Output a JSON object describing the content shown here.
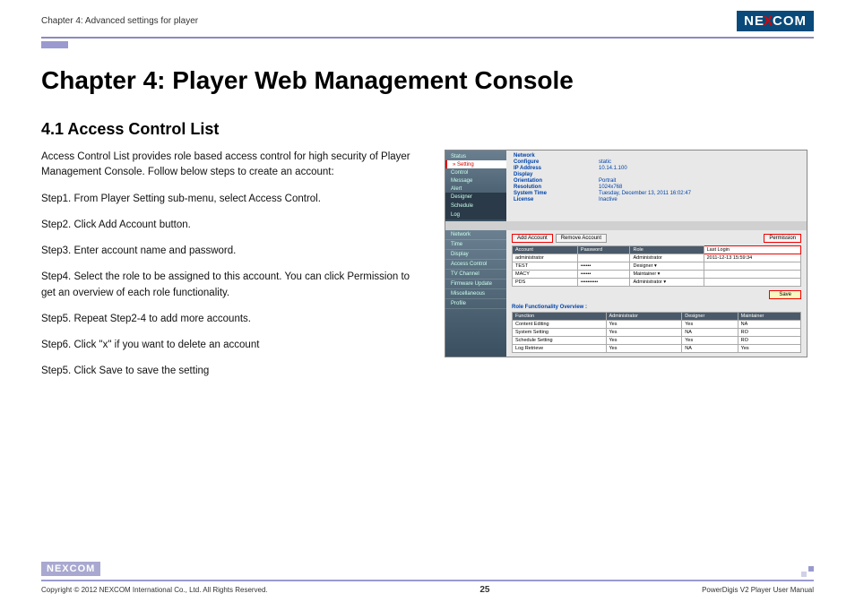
{
  "header": {
    "chapter": "Chapter 4: Advanced settings for player",
    "logo_pre": "NE",
    "logo_x": "X",
    "logo_post": "COM"
  },
  "title": "Chapter 4: Player Web Management Console",
  "section": "4.1 Access Control List",
  "intro": "Access Control List provides role based access control for high security of Player Management Console. Follow below steps to create an account:",
  "steps": {
    "s1": "Step1. From Player Setting sub-menu, select Access Control.",
    "s2": "Step2. Click Add Account button.",
    "s3": "Step3. Enter account name and password.",
    "s4": "Step4. Select the role to be assigned to this account. You can click Permission to get an overview of each role functionality.",
    "s5": "Step5. Repeat Step2-4 to add more accounts.",
    "s6": "Step6. Click \"x\" if you want to delete an account",
    "s7": "Step5. Click Save to save the setting"
  },
  "screenshot": {
    "side": {
      "status": "Status",
      "setting": "» Setting",
      "control": "Control",
      "message": "Message",
      "alert": "Alert",
      "designer": "Designer",
      "schedule": "Schedule",
      "log": "Log"
    },
    "info": {
      "network": {
        "h": "Network",
        "configure_l": "Configure",
        "configure_v": "static",
        "ip_l": "IP Address",
        "ip_v": "10.14.1.100"
      },
      "display": {
        "h": "Display",
        "orient_l": "Orientation",
        "orient_v": "Portrait",
        "res_l": "Resolution",
        "res_v": "1024x768"
      },
      "systime": {
        "h": "System Time",
        "v": "Tuesday, December 13, 2011 16:02:47"
      },
      "license": {
        "h": "License",
        "v": "Inactive"
      }
    },
    "tabs": {
      "network": "Network",
      "time": "Time",
      "display": "Display",
      "access": "Access Control",
      "tv": "TV Channel",
      "fw": "Firmware Update",
      "misc": "Miscellaneous",
      "profile": "Profile"
    },
    "buttons": {
      "add": "Add Account",
      "remove": "Remove Account",
      "perm": "Permission",
      "save": "Save"
    },
    "table": {
      "cols": {
        "acc": "Account",
        "pwd": "Password",
        "role": "Role",
        "last": "Last Login"
      },
      "r1": {
        "acc": "administrator",
        "pwd": "",
        "role": "Administrator",
        "last": "2011-12-13 15:59:34"
      },
      "r2": {
        "acc": "TEST",
        "pwd": "••••••",
        "role": "Designer ▾",
        "last": ""
      },
      "r3": {
        "acc": "MACY",
        "pwd": "••••••",
        "role": "Maintainer ▾",
        "last": ""
      },
      "r4": {
        "acc": "PDS",
        "pwd": "••••••••••",
        "role": "Administrator ▾",
        "last": ""
      }
    },
    "overview": {
      "title": "Role Functionality Overview :",
      "cols": {
        "fn": "Function",
        "admin": "Administrator",
        "des": "Designer",
        "main": "Maintainer"
      },
      "r1": {
        "fn": "Content Editing",
        "admin": "Yes",
        "des": "Yes",
        "main": "NA"
      },
      "r2": {
        "fn": "System Setting",
        "admin": "Yes",
        "des": "NA",
        "main": "RO"
      },
      "r3": {
        "fn": "Schedule Setting",
        "admin": "Yes",
        "des": "Yes",
        "main": "RO"
      },
      "r4": {
        "fn": "Log Retrieve",
        "admin": "Yes",
        "des": "NA",
        "main": "Yes"
      }
    }
  },
  "footer": {
    "copyright": "Copyright © 2012 NEXCOM International Co., Ltd. All Rights Reserved.",
    "page": "25",
    "doc": "PowerDigis V2 Player User Manual"
  }
}
